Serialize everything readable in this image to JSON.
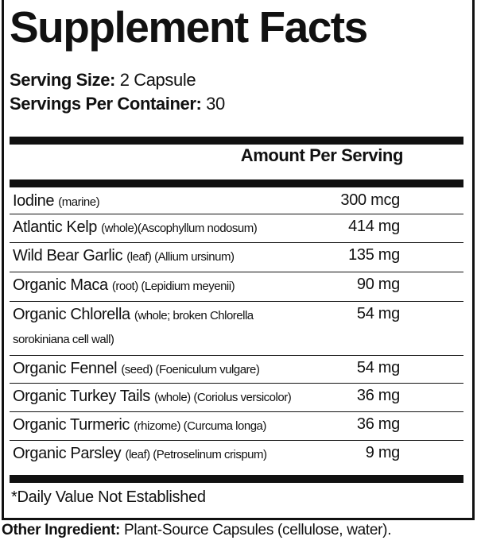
{
  "title": "Supplement Facts",
  "serving_size": {
    "label": "Serving Size:",
    "value": "2 Capsule"
  },
  "servings_per_container": {
    "label": "Servings Per Container:",
    "value": "30"
  },
  "amount_header": "Amount Per Serving",
  "rows": [
    {
      "name": "Iodine",
      "detail": "(marine)",
      "amount": "300 mcg"
    },
    {
      "name": "Atlantic Kelp",
      "detail": "(whole)(Ascophyllum nodosum)",
      "amount": "414 mg"
    },
    {
      "name": "Wild Bear Garlic",
      "detail": "(leaf) (Allium ursinum)",
      "amount": "135 mg"
    },
    {
      "name": "Organic Maca",
      "detail": "(root) (Lepidium meyenii)",
      "amount": "90 mg"
    },
    {
      "name": "Organic Chlorella",
      "detail": "(whole; broken Chlorella sorokiniana cell wall)",
      "amount": "54 mg"
    },
    {
      "name": "Organic Fennel",
      "detail": "(seed) (Foeniculum vulgare)",
      "amount": "54 mg"
    },
    {
      "name": "Organic Turkey Tails",
      "detail": "(whole) (Coriolus versicolor)",
      "amount": "36 mg"
    },
    {
      "name": "Organic Turmeric",
      "detail": "(rhizome) (Curcuma longa)",
      "amount": "36 mg"
    },
    {
      "name": "Organic Parsley",
      "detail": "(leaf) (Petroselinum crispum)",
      "amount": "9 mg"
    }
  ],
  "footnote": "*Daily Value Not Established",
  "other_ingredient": {
    "label": "Other Ingredient:",
    "value": "Plant-Source Capsules (cellulose, water)."
  }
}
